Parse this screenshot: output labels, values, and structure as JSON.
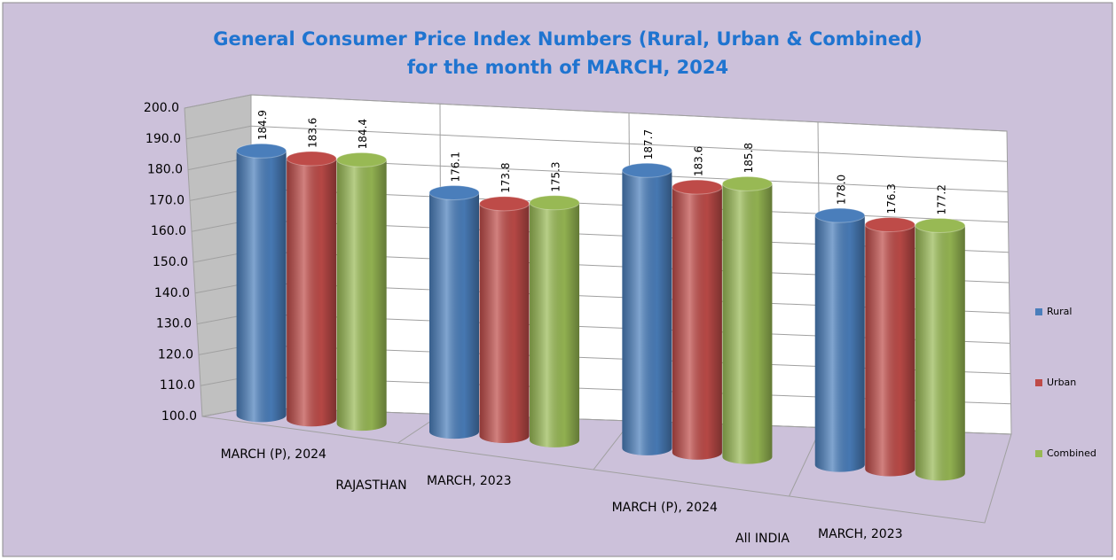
{
  "chart_data": {
    "type": "cylinder_bar",
    "title": "General Consumer Price Index Numbers (Rural, Urban & Combined)",
    "subtitle": "for the month of  MARCH, 2024",
    "categories": [
      "MARCH (P), 2024",
      "MARCH, 2023",
      "MARCH (P), 2024",
      "MARCH, 2023"
    ],
    "groups": [
      "RAJASTHAN",
      "All INDIA"
    ],
    "series": [
      {
        "name": "Rural",
        "color": "#4a7ebb",
        "values": [
          184.9,
          176.1,
          187.7,
          178.0
        ],
        "value_labels": [
          "184.9",
          "176.1",
          "187.7",
          "178.0"
        ]
      },
      {
        "name": "Urban",
        "color": "#be4b48",
        "values": [
          183.6,
          173.8,
          183.6,
          176.3
        ],
        "value_labels": [
          "183.6",
          "173.8",
          "183.6",
          "176.3"
        ]
      },
      {
        "name": "Combined",
        "color": "#98b954",
        "values": [
          184.4,
          175.3,
          185.8,
          177.2
        ],
        "value_labels": [
          "184.4",
          "175.3",
          "185.8",
          "177.2"
        ]
      }
    ],
    "ylim": [
      100,
      200
    ],
    "yticks": [
      {
        "value": 100,
        "label": "100.0"
      },
      {
        "value": 110,
        "label": "110.0"
      },
      {
        "value": 120,
        "label": "120.0"
      },
      {
        "value": 130,
        "label": "130.0"
      },
      {
        "value": 140,
        "label": "140.0"
      },
      {
        "value": 150,
        "label": "150.0"
      },
      {
        "value": 160,
        "label": "160.0"
      },
      {
        "value": 170,
        "label": "170.0"
      },
      {
        "value": 180,
        "label": "180.0"
      },
      {
        "value": 190,
        "label": "190.0"
      },
      {
        "value": 200,
        "label": "200.0"
      }
    ],
    "grid": true,
    "legend": "right"
  }
}
